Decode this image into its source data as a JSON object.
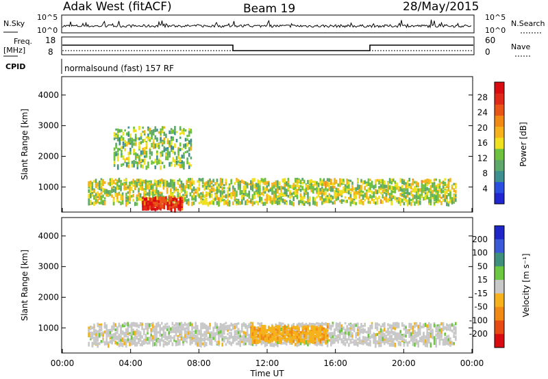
{
  "header": {
    "station": "Adak West (fitACF)",
    "beam": "Beam 19",
    "date": "28/May/2015"
  },
  "top_panels": {
    "nsky_label": "N.Sky",
    "nsearch_label": "N.Search",
    "nsky_ticks": [
      "10^5",
      "10^0"
    ],
    "nsearch_ticks": [
      "10^5",
      "10^0"
    ],
    "freq_label_1": "Freq.",
    "freq_label_2": "[MHz]",
    "freq_ticks": [
      "18",
      "8"
    ],
    "nave_label": "Nave",
    "nave_ticks": [
      "60",
      "0"
    ],
    "cpid_label": "CPID",
    "cpid_text": "normalsound (fast) 157 RF"
  },
  "chart_data": [
    {
      "type": "heatmap",
      "name": "power",
      "ylabel": "Slant Range [km]",
      "ylim": [
        180,
        4600
      ],
      "yticks": [
        "1000",
        "2000",
        "3000",
        "4000"
      ],
      "xlabel": "",
      "xticks": [
        "00:00",
        "04:00",
        "08:00",
        "12:00",
        "16:00",
        "20:00",
        "00:00"
      ],
      "colorbar": {
        "label": "Power [dB]",
        "ticks": [
          "4",
          "8",
          "12",
          "16",
          "20",
          "24",
          "28"
        ],
        "colors": [
          "#1f26d0",
          "#2a4fe0",
          "#3e8f8f",
          "#5ea86c",
          "#6fc23f",
          "#f0e020",
          "#f5b21a",
          "#f08a14",
          "#e85516",
          "#e02818",
          "#d80c10"
        ]
      },
      "features": [
        {
          "desc": "ionospheric backscatter band",
          "t_start": "01:30",
          "t_end": "23:00",
          "range_km": [
            500,
            1300
          ],
          "dominant_power_db": 14
        },
        {
          "desc": "strong echoes",
          "t_start": "04:40",
          "t_end": "07:00",
          "range_km": [
            300,
            700
          ],
          "dominant_power_db": 26
        },
        {
          "desc": "upper arc",
          "t_start": "03:00",
          "t_end": "07:30",
          "range_km": [
            1700,
            3000
          ],
          "dominant_power_db": 12
        }
      ]
    },
    {
      "type": "heatmap",
      "name": "velocity",
      "ylabel": "Slant Range [km]",
      "ylim": [
        180,
        4600
      ],
      "yticks": [
        "1000",
        "2000",
        "3000",
        "4000"
      ],
      "xlabel": "Time UT",
      "xticks": [
        "00:00",
        "04:00",
        "08:00",
        "12:00",
        "16:00",
        "20:00",
        "00:00"
      ],
      "colorbar": {
        "label": "Velocity [m s⁻¹]",
        "ticks": [
          "200",
          "100",
          "50",
          "15",
          "-15",
          "-50",
          "-100",
          "-200"
        ],
        "colors": [
          "#1f26c8",
          "#3a5ad8",
          "#3e8f7c",
          "#6cc840",
          "#c8c8c8",
          "#f5b21a",
          "#f08a14",
          "#e84a14",
          "#d80c10"
        ]
      },
      "features": [
        {
          "desc": "ground scatter (near zero velocity)",
          "t_start": "01:30",
          "t_end": "23:00",
          "range_km": [
            500,
            1200
          ],
          "dominant_velocity_ms": 0
        },
        {
          "desc": "negative velocity patch",
          "t_start": "11:00",
          "t_end": "15:30",
          "range_km": [
            600,
            1100
          ],
          "dominant_velocity_ms": -40
        }
      ]
    }
  ]
}
